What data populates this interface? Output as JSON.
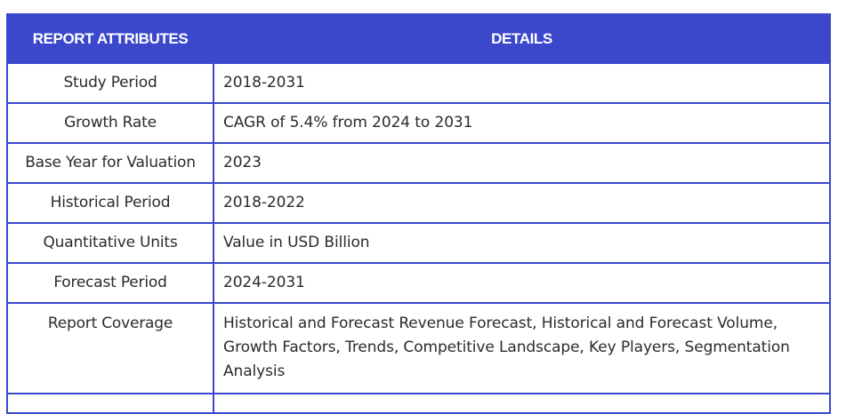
{
  "table": {
    "headers": {
      "attribute": "REPORT ATTRIBUTES",
      "details": "DETAILS"
    },
    "rows": [
      {
        "attribute": "Study Period",
        "details": "2018-2031"
      },
      {
        "attribute": "Growth Rate",
        "details": "CAGR of 5.4% from 2024 to 2031"
      },
      {
        "attribute": "Base Year for Valuation",
        "details": "2023"
      },
      {
        "attribute": "Historical Period",
        "details": "2018-2022"
      },
      {
        "attribute": "Quantitative Units",
        "details": "Value in USD Billion"
      },
      {
        "attribute": "Forecast Period",
        "details": "2024-2031"
      },
      {
        "attribute": "Report Coverage",
        "details": "Historical and Forecast Revenue Forecast, Historical and Forecast Volume, Growth Factors, Trends, Competitive Landscape, Key Players, Segmentation Analysis"
      }
    ],
    "colors": {
      "accent": "#3b48cc",
      "header_text": "#ffffff",
      "body_text": "#2b2b2b"
    }
  }
}
